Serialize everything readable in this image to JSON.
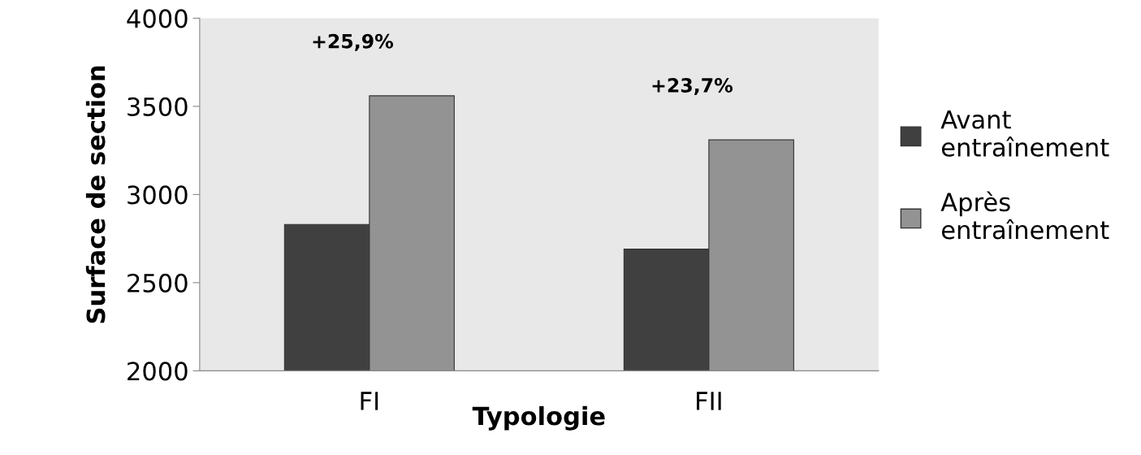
{
  "chart_data": {
    "type": "bar",
    "xlabel": "Typologie",
    "ylabel": "Surface de section",
    "categories": [
      "FI",
      "FII"
    ],
    "series": [
      {
        "name": "Avant entraînement",
        "color": "#404040",
        "values": [
          2830,
          2690
        ]
      },
      {
        "name": "Après entraînement",
        "color": "#939393",
        "values": [
          3560,
          3310
        ]
      }
    ],
    "ylim": [
      2000,
      4000
    ],
    "yticks": [
      2000,
      2500,
      3000,
      3500,
      4000
    ],
    "grid": false,
    "legend": "right",
    "annotations": [
      "+25,9%",
      "+23,7%"
    ]
  }
}
